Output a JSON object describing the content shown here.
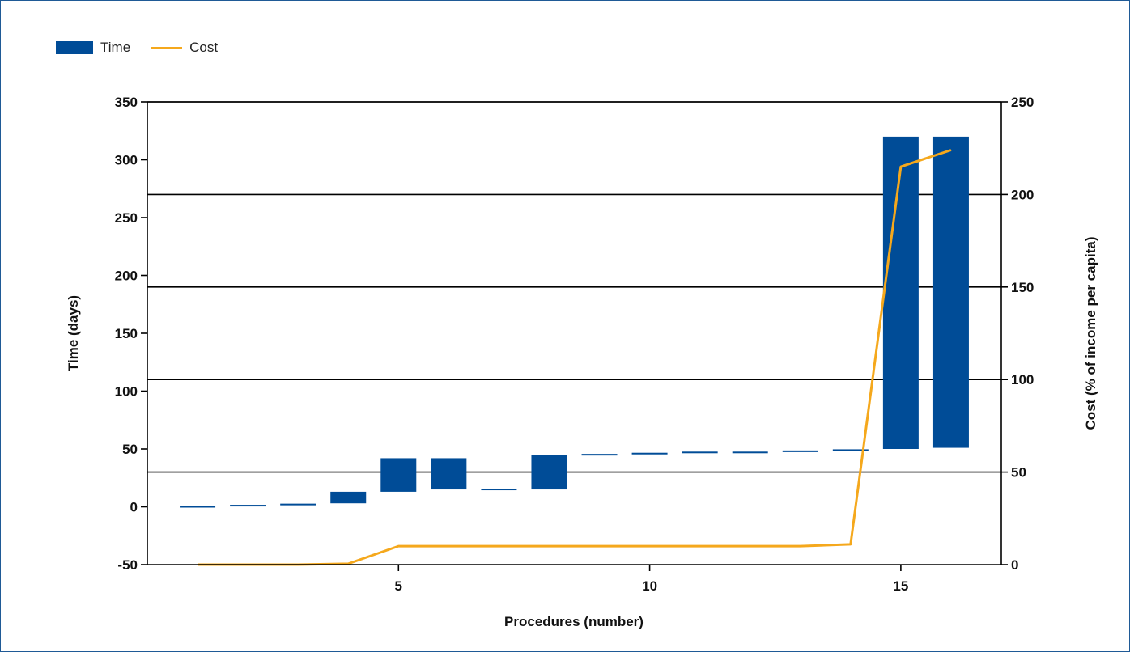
{
  "chart_data": {
    "type": "bar+line",
    "legend": [
      {
        "name": "Time",
        "kind": "bar",
        "color": "#004c97"
      },
      {
        "name": "Cost",
        "kind": "line",
        "color": "#f5a81c"
      }
    ],
    "legend_placement": "top-left",
    "xlabel": "Procedures (number)",
    "ylabel_left": "Time (days)",
    "ylabel_right": "Cost (% of income per capita)",
    "xlim": [
      0,
      17
    ],
    "ylim_left": [
      -50,
      350
    ],
    "ylim_right": [
      0,
      250
    ],
    "x_ticks": [
      5,
      10,
      15
    ],
    "y_ticks_left": [
      -50,
      0,
      50,
      100,
      150,
      200,
      250,
      300,
      350
    ],
    "y_ticks_right": [
      0,
      50,
      100,
      150,
      200,
      250
    ],
    "gridlines_right_axis": [
      50,
      100,
      150,
      200,
      250
    ],
    "time_series": {
      "name": "Time",
      "segments": [
        {
          "start": 0,
          "end": 1
        },
        {
          "start": 1,
          "end": 2
        },
        {
          "start": 2,
          "end": 3
        },
        {
          "start": 3,
          "end": 13
        },
        {
          "start": 13,
          "end": 42
        },
        {
          "start": 42,
          "end": 15
        },
        {
          "start": 15,
          "end": 15
        },
        {
          "start": 15,
          "end": 45
        },
        {
          "start": 45,
          "end": 46
        },
        {
          "start": 46,
          "end": 47
        },
        {
          "start": 47,
          "end": 47
        },
        {
          "start": 47,
          "end": 48
        },
        {
          "start": 48,
          "end": 49
        },
        {
          "start": 49,
          "end": 50
        },
        {
          "start": 50,
          "end": 320
        },
        {
          "start": 320,
          "end": 51
        }
      ]
    },
    "cost_series": {
      "name": "Cost",
      "x": [
        1,
        2,
        3,
        4,
        5,
        6,
        7,
        8,
        9,
        10,
        11,
        12,
        13,
        14,
        15,
        16
      ],
      "y": [
        0,
        0,
        0,
        0.5,
        10,
        10,
        10,
        10,
        10,
        10,
        10,
        10,
        10,
        11,
        215,
        224
      ]
    }
  }
}
